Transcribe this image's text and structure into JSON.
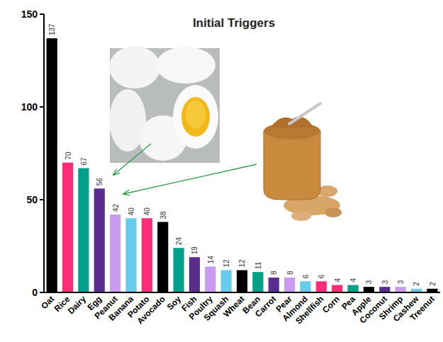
{
  "chart_data": {
    "type": "bar",
    "title": "Initial Triggers",
    "categories": [
      "Oat",
      "Rice",
      "Dairy",
      "Egg",
      "Peanut",
      "Banana",
      "Potato",
      "Avocado",
      "Soy",
      "Fish",
      "Poultry",
      "Squash",
      "Wheat",
      "Bean",
      "Carrot",
      "Pear",
      "Almond",
      "Shellfish",
      "Corn",
      "Pea",
      "Apple",
      "Coconut",
      "Shrimp",
      "Cashew",
      "Treenut"
    ],
    "values": [
      137,
      70,
      67,
      56,
      42,
      40,
      40,
      38,
      24,
      19,
      14,
      12,
      12,
      11,
      8,
      8,
      6,
      6,
      4,
      4,
      3,
      3,
      3,
      2,
      2
    ],
    "colors": [
      "#000000",
      "#ff2d78",
      "#00a08a",
      "#5b2c8f",
      "#c99af0",
      "#66ccee",
      "#ff2d78",
      "#000000",
      "#00a08a",
      "#5b2c8f",
      "#c99af0",
      "#66ccee",
      "#000000",
      "#00a08a",
      "#5b2c8f",
      "#c99af0",
      "#66ccee",
      "#ff2d78",
      "#ff2d78",
      "#00a08a",
      "#000000",
      "#5b2c8f",
      "#c99af0",
      "#66ccee",
      "#000000"
    ],
    "ylim": [
      0,
      150
    ],
    "yticks": [
      0,
      50,
      100,
      150
    ],
    "grid": false,
    "data_labels": true
  }
}
